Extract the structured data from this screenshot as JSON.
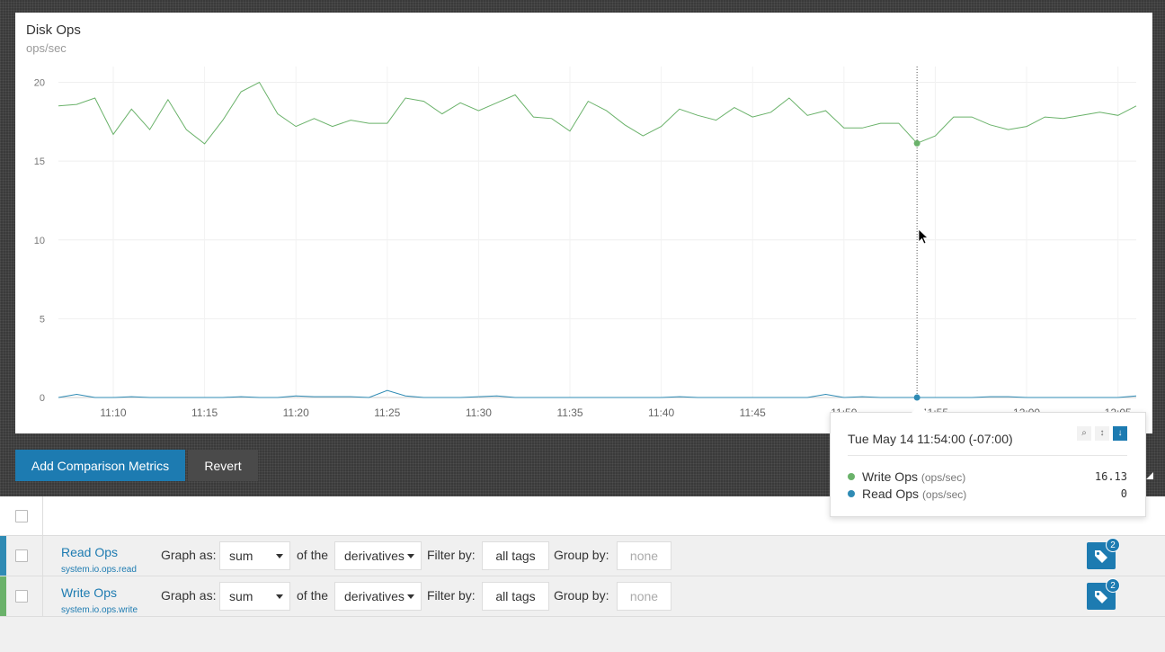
{
  "chart": {
    "title": "Disk Ops",
    "subtitle": "ops/sec"
  },
  "chart_data": {
    "type": "line",
    "title": "Disk Ops",
    "ylabel": "ops/sec",
    "xlabel": "",
    "ylim": [
      0,
      21
    ],
    "y_ticks": [
      0,
      5,
      10,
      15,
      20
    ],
    "x_ticks": [
      "11:10",
      "11:15",
      "11:20",
      "11:25",
      "11:30",
      "11:35",
      "11:40",
      "11:45",
      "11:50",
      "11:55",
      "12:00",
      "12:05"
    ],
    "x_start": "11:07",
    "x_end": "12:06",
    "grid": true,
    "legend": "none",
    "series": [
      {
        "name": "Write Ops",
        "color": "#6ab26a",
        "x": [
          "11:07",
          "11:08",
          "11:09",
          "11:10",
          "11:11",
          "11:12",
          "11:13",
          "11:14",
          "11:15",
          "11:16",
          "11:17",
          "11:18",
          "11:19",
          "11:20",
          "11:21",
          "11:22",
          "11:23",
          "11:24",
          "11:25",
          "11:26",
          "11:27",
          "11:28",
          "11:29",
          "11:30",
          "11:31",
          "11:32",
          "11:33",
          "11:34",
          "11:35",
          "11:36",
          "11:37",
          "11:38",
          "11:39",
          "11:40",
          "11:41",
          "11:42",
          "11:43",
          "11:44",
          "11:45",
          "11:46",
          "11:47",
          "11:48",
          "11:49",
          "11:50",
          "11:51",
          "11:52",
          "11:53",
          "11:54",
          "11:55",
          "11:56",
          "11:57",
          "11:58",
          "11:59",
          "12:00",
          "12:01",
          "12:02",
          "12:03",
          "12:04",
          "12:05",
          "12:06"
        ],
        "values": [
          18.5,
          18.6,
          19.0,
          16.7,
          18.3,
          17.0,
          18.9,
          17.0,
          16.1,
          17.6,
          19.4,
          20.0,
          18.0,
          17.2,
          17.7,
          17.2,
          17.6,
          17.4,
          17.4,
          19.0,
          18.8,
          18.0,
          18.7,
          18.2,
          18.7,
          19.2,
          17.8,
          17.7,
          16.9,
          18.8,
          18.2,
          17.3,
          16.6,
          17.2,
          18.3,
          17.9,
          17.6,
          18.4,
          17.8,
          18.1,
          19.0,
          17.9,
          18.2,
          17.1,
          17.1,
          17.4,
          17.4,
          16.13,
          16.6,
          17.8,
          17.8,
          17.3,
          17.0,
          17.2,
          17.8,
          17.7,
          17.9,
          18.1,
          17.9,
          18.5
        ]
      },
      {
        "name": "Read Ops",
        "color": "#2f8bb4",
        "x": [
          "11:07",
          "11:08",
          "11:09",
          "11:10",
          "11:11",
          "11:12",
          "11:13",
          "11:14",
          "11:15",
          "11:16",
          "11:17",
          "11:18",
          "11:19",
          "11:20",
          "11:21",
          "11:22",
          "11:23",
          "11:24",
          "11:25",
          "11:26",
          "11:27",
          "11:28",
          "11:29",
          "11:30",
          "11:31",
          "11:32",
          "11:33",
          "11:34",
          "11:35",
          "11:36",
          "11:37",
          "11:38",
          "11:39",
          "11:40",
          "11:41",
          "11:42",
          "11:43",
          "11:44",
          "11:45",
          "11:46",
          "11:47",
          "11:48",
          "11:49",
          "11:50",
          "11:51",
          "11:52",
          "11:53",
          "11:54",
          "11:55",
          "11:56",
          "11:57",
          "11:58",
          "11:59",
          "12:00",
          "12:01",
          "12:02",
          "12:03",
          "12:04",
          "12:05",
          "12:06"
        ],
        "values": [
          0,
          0.2,
          0,
          0,
          0.05,
          0,
          0,
          0,
          0,
          0,
          0.05,
          0,
          0,
          0.1,
          0.05,
          0.05,
          0.05,
          0,
          0.45,
          0.1,
          0,
          0,
          0,
          0.05,
          0.1,
          0,
          0,
          0,
          0,
          0,
          0,
          0,
          0,
          0,
          0.05,
          0,
          0,
          0,
          0,
          0,
          0,
          0,
          0.2,
          0,
          0.05,
          0,
          0,
          0,
          0,
          0,
          0,
          0.05,
          0.05,
          0,
          0,
          0,
          0,
          0,
          0,
          0.1
        ]
      }
    ],
    "hover": {
      "x": "11:54",
      "y": 16.13
    }
  },
  "buttons": {
    "add_comparison": "Add Comparison Metrics",
    "revert": "Revert"
  },
  "tooltip": {
    "timestamp": "Tue May 14 11:54:00 (-07:00)",
    "icons": [
      "search-icon",
      "sort-ascending-icon",
      "sort-descending-icon"
    ],
    "icon_glyphs": [
      "⌕",
      "↕",
      "↓"
    ],
    "rows": [
      {
        "name": "Write Ops",
        "unit": "(ops/sec)",
        "value": "16.13",
        "color": "#6ab26a"
      },
      {
        "name": "Read Ops",
        "unit": "(ops/sec)",
        "value": "0",
        "color": "#2f8bb4"
      }
    ]
  },
  "metrics": [
    {
      "name": "Read Ops",
      "id": "system.io.ops.read",
      "color": "#2f8bb4",
      "graph_as_label": "Graph as:",
      "aggregation": "sum",
      "of_the_label": "of the",
      "function": "derivatives",
      "filter_label": "Filter by:",
      "filter": "all tags",
      "group_label": "Group by:",
      "group_placeholder": "none",
      "tag_count": "2"
    },
    {
      "name": "Write Ops",
      "id": "system.io.ops.write",
      "color": "#6ab26a",
      "graph_as_label": "Graph as:",
      "aggregation": "sum",
      "of_the_label": "of the",
      "function": "derivatives",
      "filter_label": "Filter by:",
      "filter": "all tags",
      "group_label": "Group by:",
      "group_placeholder": "none",
      "tag_count": "2"
    }
  ]
}
